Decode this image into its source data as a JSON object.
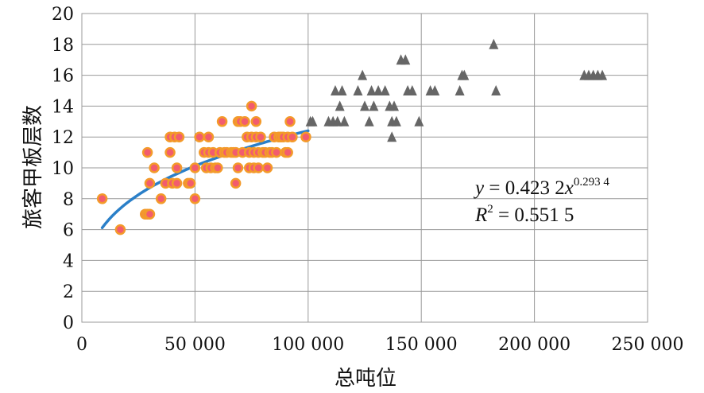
{
  "chart_data": {
    "type": "scatter",
    "title": "",
    "xlabel": "总吨位",
    "ylabel": "旅客甲板层数",
    "xlim": [
      0,
      250000
    ],
    "ylim": [
      0,
      20
    ],
    "x_ticks": [
      0,
      50000,
      100000,
      150000,
      200000,
      250000
    ],
    "x_tick_labels": [
      "0",
      "50 000",
      "100 000",
      "150 000",
      "200 000",
      "250 000"
    ],
    "y_ticks": [
      0,
      2,
      4,
      6,
      8,
      10,
      12,
      14,
      16,
      18,
      20
    ],
    "y_tick_labels": [
      "0",
      "2",
      "4",
      "6",
      "8",
      "10",
      "12",
      "14",
      "16",
      "18",
      "20"
    ],
    "grid": true,
    "legend": "none",
    "colors": {
      "circle_fill": "#f25c6e",
      "circle_edge": "#f39a2a",
      "triangle": "#666666",
      "trend": "#2a7fc8"
    },
    "series": [
      {
        "marker": "circle",
        "points": [
          [
            9000,
            8
          ],
          [
            17000,
            6
          ],
          [
            28000,
            7
          ],
          [
            29000,
            7
          ],
          [
            29000,
            11
          ],
          [
            30000,
            7
          ],
          [
            30000,
            9
          ],
          [
            32000,
            10
          ],
          [
            35000,
            8
          ],
          [
            37000,
            9
          ],
          [
            39000,
            12
          ],
          [
            39000,
            11
          ],
          [
            40000,
            9
          ],
          [
            41000,
            12
          ],
          [
            42000,
            9
          ],
          [
            42000,
            10
          ],
          [
            43000,
            12
          ],
          [
            47000,
            9
          ],
          [
            48000,
            9
          ],
          [
            50000,
            8
          ],
          [
            50000,
            10
          ],
          [
            52000,
            12
          ],
          [
            54000,
            11
          ],
          [
            55000,
            10
          ],
          [
            56000,
            11
          ],
          [
            56000,
            12
          ],
          [
            57000,
            10
          ],
          [
            58000,
            11
          ],
          [
            59000,
            10
          ],
          [
            60000,
            10
          ],
          [
            61000,
            11
          ],
          [
            62000,
            13
          ],
          [
            63000,
            11
          ],
          [
            64000,
            11
          ],
          [
            66000,
            11
          ],
          [
            67000,
            11
          ],
          [
            68000,
            9
          ],
          [
            68000,
            11
          ],
          [
            69000,
            10
          ],
          [
            69000,
            13
          ],
          [
            70000,
            13
          ],
          [
            71000,
            11
          ],
          [
            72000,
            13
          ],
          [
            73000,
            12
          ],
          [
            74000,
            11
          ],
          [
            74000,
            10
          ],
          [
            75000,
            14
          ],
          [
            75000,
            12
          ],
          [
            76000,
            11
          ],
          [
            76000,
            10
          ],
          [
            77000,
            13
          ],
          [
            77000,
            12
          ],
          [
            78000,
            11
          ],
          [
            78000,
            10
          ],
          [
            79000,
            12
          ],
          [
            80000,
            11
          ],
          [
            81000,
            11
          ],
          [
            82000,
            10
          ],
          [
            83000,
            11
          ],
          [
            84000,
            11
          ],
          [
            85000,
            12
          ],
          [
            86000,
            11
          ],
          [
            87000,
            12
          ],
          [
            88000,
            12
          ],
          [
            89000,
            12
          ],
          [
            90000,
            11
          ],
          [
            91000,
            11
          ],
          [
            91000,
            12
          ],
          [
            92000,
            13
          ],
          [
            93000,
            12
          ],
          [
            99000,
            12
          ]
        ]
      },
      {
        "marker": "triangle",
        "points": [
          [
            101000,
            13
          ],
          [
            102000,
            13
          ],
          [
            109000,
            13
          ],
          [
            111000,
            13
          ],
          [
            112000,
            15
          ],
          [
            113000,
            13
          ],
          [
            114000,
            14
          ],
          [
            115000,
            15
          ],
          [
            116000,
            13
          ],
          [
            122000,
            15
          ],
          [
            124000,
            16
          ],
          [
            125000,
            14
          ],
          [
            127000,
            13
          ],
          [
            128000,
            15
          ],
          [
            129000,
            14
          ],
          [
            131000,
            15
          ],
          [
            134000,
            15
          ],
          [
            136000,
            14
          ],
          [
            137000,
            12
          ],
          [
            137000,
            13
          ],
          [
            138000,
            14
          ],
          [
            139000,
            13
          ],
          [
            141000,
            17
          ],
          [
            143000,
            17
          ],
          [
            144000,
            15
          ],
          [
            146000,
            15
          ],
          [
            149000,
            13
          ],
          [
            154000,
            15
          ],
          [
            156000,
            15
          ],
          [
            167000,
            15
          ],
          [
            168000,
            16
          ],
          [
            169000,
            16
          ],
          [
            182000,
            18
          ],
          [
            183000,
            15
          ],
          [
            222000,
            16
          ],
          [
            224000,
            16
          ],
          [
            226000,
            16
          ],
          [
            228000,
            16
          ],
          [
            230000,
            16
          ]
        ]
      },
      {
        "type": "line",
        "fit": "power",
        "coef_a": 0.4232,
        "exponent_b": 0.2934,
        "x_range": [
          9000,
          100000
        ]
      }
    ],
    "annotation": {
      "line1_lhs": "y",
      "line1_rhs": " = 0.423 2",
      "line1_var": "x",
      "line1_exp": "0.293 4",
      "line2_lhs": "R",
      "line2_exp": "2",
      "line2_rhs": " = 0.551 5"
    }
  }
}
